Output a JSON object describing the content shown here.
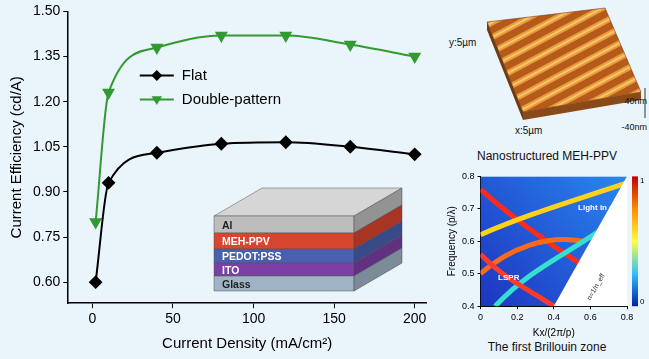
{
  "chart_data": {
    "type": "line",
    "x_label": "Current Density (mA/cm²)",
    "y_label": "Current Efficiency (cd/A)",
    "x": [
      2,
      10,
      40,
      80,
      120,
      160,
      200
    ],
    "series": [
      {
        "name": "Flat",
        "color": "#000000",
        "marker": "diamond",
        "values": [
          0.6,
          0.93,
          1.03,
          1.06,
          1.065,
          1.05,
          1.025
        ]
      },
      {
        "name": "Double-pattern",
        "color": "#339933",
        "marker": "triangle-down",
        "values": [
          0.8,
          1.23,
          1.38,
          1.42,
          1.42,
          1.39,
          1.35
        ]
      }
    ],
    "xlim": [
      -15,
      207
    ],
    "xticks": [
      0,
      50,
      100,
      150,
      200
    ],
    "ylim": [
      0.53,
      1.5
    ],
    "yticks": [
      {
        "value": 0.6,
        "label": "0.60"
      },
      {
        "value": 0.75,
        "label": "0.75"
      },
      {
        "value": 0.9,
        "label": "0.90"
      },
      {
        "value": 1.05,
        "label": "1.05"
      },
      {
        "value": 1.2,
        "label": "1.20"
      },
      {
        "value": 1.35,
        "label": "1.35"
      },
      {
        "value": 1.5,
        "label": "1.50"
      }
    ],
    "legend": "upper left",
    "grid": false
  },
  "device_inset": {
    "layers": [
      "Al",
      "MEH-PPV",
      "PEDOT:PSS",
      "ITO",
      "Glass"
    ]
  },
  "afm_image": {
    "title": "Nanostructured MEH-PPV",
    "x_label": "x:5µm",
    "y_label": "y:5µm",
    "z_labels": [
      "40nm",
      "-40nm"
    ]
  },
  "band_diagram": {
    "title": "The first Brillouin zone",
    "x_label": "Kx/(2π/p)",
    "y_label": "Frequency (p/λ)",
    "xlim": [
      0,
      0.8
    ],
    "xticks": [
      0,
      0.2,
      0.4,
      0.6,
      0.8
    ],
    "ylim": [
      0.4,
      0.8
    ],
    "yticks": [
      0.4,
      0.5,
      0.6,
      0.7,
      0.8
    ],
    "colorbar": {
      "range": [
        0,
        1
      ],
      "ticks": [
        0,
        1
      ]
    },
    "annotations": [
      "Light in air",
      "LSPR",
      "n=1/n_eff"
    ]
  }
}
